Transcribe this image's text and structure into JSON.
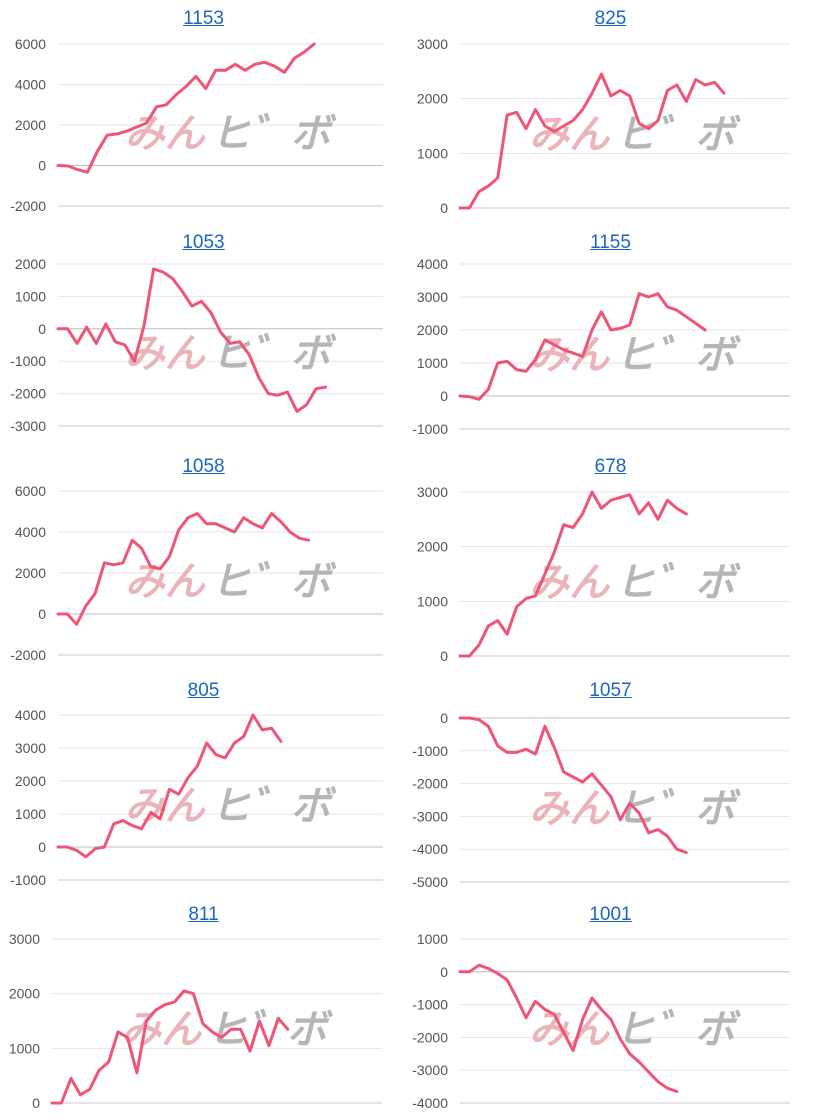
{
  "colors": {
    "line": "#ee5577",
    "title_link": "#1a66c2",
    "watermark_a": "#e8a8ac",
    "watermark_b": "#aaaaaa"
  },
  "watermark": {
    "part_a": "みん",
    "part_b": "ヒ゛ボ"
  },
  "chart_data": [
    {
      "type": "line",
      "title": "1153",
      "ylim": [
        -2000,
        6000
      ],
      "yticks": [
        6000,
        4000,
        2000,
        0,
        -2000
      ],
      "grid": true,
      "values": [
        0,
        -20,
        -200,
        -330,
        700,
        1500,
        1560,
        1700,
        1900,
        2100,
        2900,
        3000,
        3500,
        3900,
        4400,
        3800,
        4700,
        4700,
        5000,
        4700,
        5000,
        5100,
        4900,
        4600,
        5300,
        5600,
        6000
      ]
    },
    {
      "type": "line",
      "title": "825",
      "ylim": [
        0,
        3000
      ],
      "yticks": [
        3000,
        2000,
        1000,
        0
      ],
      "grid": true,
      "values": [
        0,
        0,
        300,
        400,
        550,
        1700,
        1750,
        1450,
        1800,
        1500,
        1400,
        1500,
        1600,
        1800,
        2100,
        2450,
        2050,
        2150,
        2050,
        1550,
        1450,
        1600,
        2150,
        2250,
        1950,
        2350,
        2250,
        2300,
        2100
      ]
    },
    {
      "type": "line",
      "title": "1053",
      "ylim": [
        -3000,
        2000
      ],
      "yticks": [
        2000,
        1000,
        0,
        -1000,
        -2000,
        -3000
      ],
      "grid": true,
      "values": [
        0,
        0,
        -450,
        50,
        -450,
        150,
        -400,
        -500,
        -1000,
        100,
        1850,
        1750,
        1550,
        1150,
        700,
        850,
        500,
        -100,
        -450,
        -400,
        -800,
        -1500,
        -2000,
        -2050,
        -1950,
        -2550,
        -2350,
        -1850,
        -1800
      ]
    },
    {
      "type": "line",
      "title": "1155",
      "ylim": [
        -1000,
        4000
      ],
      "yticks": [
        4000,
        3000,
        2000,
        1000,
        0,
        -1000
      ],
      "grid": true,
      "values": [
        0,
        -20,
        -100,
        200,
        1000,
        1050,
        800,
        750,
        1100,
        1700,
        1550,
        1400,
        1300,
        1200,
        2000,
        2550,
        2000,
        2050,
        2150,
        3100,
        3000,
        3100,
        2700,
        2600,
        2400,
        2200,
        2000
      ]
    },
    {
      "type": "line",
      "title": "1058",
      "ylim": [
        -2000,
        6000
      ],
      "yticks": [
        6000,
        4000,
        2000,
        0,
        -2000
      ],
      "grid": true,
      "values": [
        0,
        0,
        -500,
        400,
        1000,
        2500,
        2400,
        2500,
        3600,
        3200,
        2300,
        2200,
        2800,
        4100,
        4700,
        4900,
        4400,
        4400,
        4200,
        4000,
        4700,
        4400,
        4200,
        4900,
        4500,
        4000,
        3700,
        3600
      ]
    },
    {
      "type": "line",
      "title": "678",
      "ylim": [
        0,
        3000
      ],
      "yticks": [
        3000,
        2000,
        1000,
        0
      ],
      "grid": true,
      "values": [
        0,
        0,
        200,
        550,
        650,
        400,
        900,
        1050,
        1100,
        1500,
        1900,
        2400,
        2350,
        2600,
        3000,
        2700,
        2850,
        2900,
        2950,
        2600,
        2800,
        2500,
        2850,
        2700,
        2600
      ]
    },
    {
      "type": "line",
      "title": "805",
      "ylim": [
        -1000,
        4000
      ],
      "yticks": [
        4000,
        3000,
        2000,
        1000,
        0,
        -1000
      ],
      "grid": true,
      "values": [
        0,
        0,
        -100,
        -300,
        -50,
        0,
        700,
        800,
        650,
        550,
        1050,
        850,
        1750,
        1600,
        2100,
        2450,
        3150,
        2800,
        2700,
        3150,
        3350,
        4000,
        3550,
        3600,
        3200
      ]
    },
    {
      "type": "line",
      "title": "1057",
      "ylim": [
        -5000,
        0
      ],
      "yticks": [
        0,
        -1000,
        -2000,
        -3000,
        -4000,
        -5000
      ],
      "grid": true,
      "values": [
        0,
        0,
        -50,
        -250,
        -850,
        -1050,
        -1050,
        -950,
        -1100,
        -250,
        -900,
        -1650,
        -1800,
        -1950,
        -1700,
        -2050,
        -2400,
        -3100,
        -2600,
        -2900,
        -3500,
        -3400,
        -3600,
        -4000,
        -4100
      ]
    },
    {
      "type": "line",
      "title": "811",
      "ylim": [
        0,
        3000
      ],
      "yticks": [
        3000,
        2000,
        1000,
        0
      ],
      "grid": true,
      "values": [
        0,
        0,
        450,
        150,
        250,
        600,
        750,
        1300,
        1200,
        550,
        1500,
        1700,
        1800,
        1850,
        2050,
        2000,
        1450,
        1300,
        1200,
        1350,
        1350,
        950,
        1500,
        1050,
        1550,
        1350
      ]
    },
    {
      "type": "line",
      "title": "1001",
      "ylim": [
        -4000,
        1000
      ],
      "yticks": [
        1000,
        0,
        -1000,
        -2000,
        -3000,
        -4000
      ],
      "grid": true,
      "values": [
        0,
        0,
        200,
        100,
        -50,
        -250,
        -800,
        -1400,
        -900,
        -1150,
        -1300,
        -1850,
        -2400,
        -1450,
        -800,
        -1150,
        -1450,
        -2050,
        -2500,
        -2750,
        -3050,
        -3350,
        -3550,
        -3650
      ]
    }
  ]
}
